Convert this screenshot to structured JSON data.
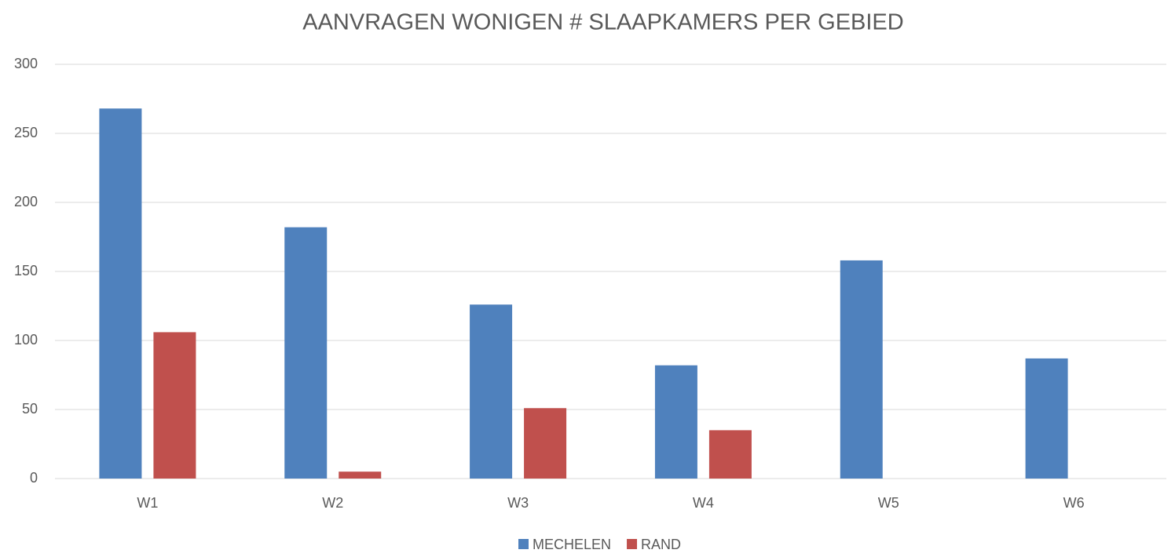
{
  "chart_data": {
    "type": "bar",
    "title": "AANVRAGEN WONIGEN # SLAAPKAMERS PER GEBIED",
    "categories": [
      "W1",
      "W2",
      "W3",
      "W4",
      "W5",
      "W6"
    ],
    "series": [
      {
        "name": "MECHELEN",
        "color": "#4f81bd",
        "values": [
          268,
          182,
          126,
          82,
          158,
          87
        ]
      },
      {
        "name": "RAND",
        "color": "#c0504d",
        "values": [
          106,
          5,
          51,
          35,
          0,
          0
        ]
      }
    ],
    "ylim": [
      0,
      300
    ],
    "yticks": [
      0,
      50,
      100,
      150,
      200,
      250,
      300
    ],
    "grid": true,
    "legend": "bottom"
  }
}
